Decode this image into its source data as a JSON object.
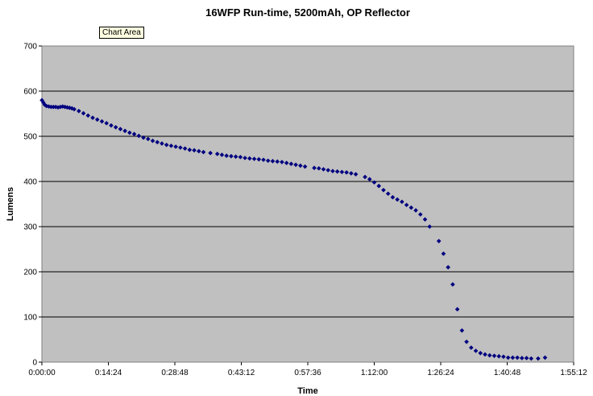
{
  "tooltip": "Chart Area",
  "chart_data": {
    "type": "scatter",
    "title": "16WFP Run-time, 5200mAh, OP Reflector",
    "xlabel": "Time",
    "ylabel": "Lumens",
    "xlim_minutes": [
      0,
      115.2
    ],
    "ylim": [
      0,
      700
    ],
    "y_ticks": [
      "0",
      "100",
      "200",
      "300",
      "400",
      "500",
      "600",
      "700"
    ],
    "x_ticks": [
      "0:00:00",
      "0:14:24",
      "0:28:48",
      "0:43:12",
      "0:57:36",
      "1:12:00",
      "1:26:24",
      "1:40:48",
      "1:55:12"
    ],
    "grid": "horizontal",
    "plot_background": "#c0c0c0",
    "marker_color": "#000080",
    "series": [
      {
        "x_minutes": [
          0.0,
          0.3,
          0.6,
          1.0,
          1.5,
          2.0,
          2.5,
          3.0,
          3.5,
          4.0,
          4.5,
          5.0,
          5.5,
          6.0,
          6.5,
          7.0,
          8.0,
          9.0,
          10.0,
          11.0,
          12.0,
          13.0,
          14.0,
          15.0,
          16.0,
          17.0,
          18.0,
          19.0,
          20.0,
          21.0,
          22.0,
          23.0,
          24.0,
          25.0,
          26.0,
          27.0,
          28.0,
          29.0,
          30.0,
          31.0,
          32.0,
          33.0,
          34.0,
          35.0,
          36.5,
          38.0,
          39.0,
          40.0,
          41.0,
          42.0,
          43.0,
          44.0,
          45.0,
          46.0,
          47.0,
          48.0,
          49.0,
          50.0,
          51.0,
          52.0,
          53.0,
          54.0,
          55.0,
          56.0,
          57.0,
          59.0,
          60.0,
          61.0,
          62.0,
          63.0,
          64.0,
          65.0,
          66.0,
          67.0,
          68.0,
          70.0,
          71.0,
          72.0,
          73.0,
          74.0,
          75.0,
          76.0,
          77.0,
          78.0,
          79.0,
          80.0,
          81.0,
          82.0,
          83.0,
          84.0,
          86.0,
          87.0,
          88.0,
          89.0,
          90.0,
          91.0,
          92.0,
          93.0,
          94.0,
          95.0,
          96.0,
          97.0,
          98.0,
          99.0,
          100.0,
          101.0,
          102.0,
          103.0,
          104.0,
          105.0,
          106.0,
          107.5,
          109.0
        ],
        "y_lumens": [
          580,
          575,
          570,
          567,
          566,
          565,
          565,
          565,
          564,
          565,
          566,
          565,
          564,
          563,
          562,
          560,
          556,
          551,
          546,
          541,
          537,
          533,
          529,
          524,
          520,
          516,
          512,
          508,
          505,
          501,
          497,
          494,
          490,
          487,
          484,
          481,
          479,
          477,
          475,
          473,
          470,
          469,
          467,
          465,
          463,
          461,
          459,
          457,
          456,
          455,
          454,
          452,
          451,
          450,
          449,
          448,
          446,
          445,
          444,
          443,
          441,
          439,
          437,
          435,
          433,
          430,
          429,
          427,
          425,
          423,
          422,
          421,
          420,
          418,
          416,
          410,
          405,
          398,
          390,
          381,
          373,
          365,
          360,
          355,
          348,
          342,
          336,
          327,
          316,
          300,
          268,
          240,
          210,
          172,
          117,
          70,
          45,
          32,
          25,
          20,
          17,
          15,
          14,
          13,
          12,
          10,
          10,
          10,
          9,
          9,
          8,
          8,
          10
        ]
      }
    ]
  }
}
